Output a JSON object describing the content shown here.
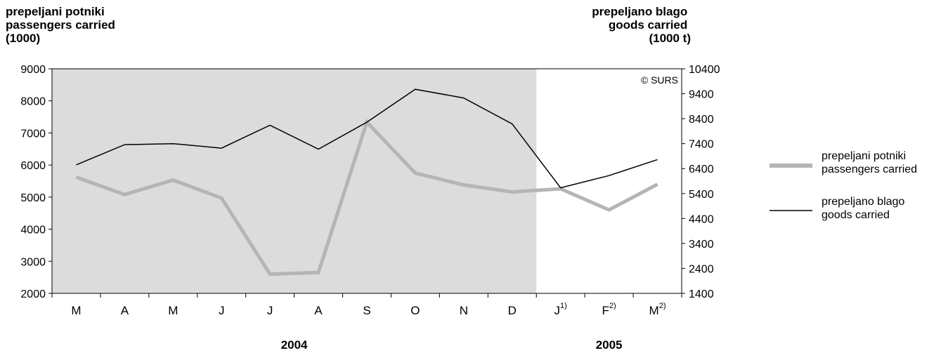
{
  "chart_data": {
    "type": "line",
    "categories": [
      "M",
      "A",
      "M",
      "J",
      "J",
      "A",
      "S",
      "O",
      "N",
      "D",
      "J",
      "F",
      "M"
    ],
    "category_superscripts": [
      "",
      "",
      "",
      "",
      "",
      "",
      "",
      "",
      "",
      "",
      "1)",
      "2)",
      "2)"
    ],
    "years": [
      {
        "label": "2004",
        "from_index": 0,
        "to_index": 9
      },
      {
        "label": "2005",
        "from_index": 10,
        "to_index": 12
      }
    ],
    "shaded_categories": [
      0,
      9
    ],
    "left_axis": {
      "title_lines": [
        "prepeljani potniki",
        "passengers carried",
        "(1000)"
      ],
      "min": 2000,
      "max": 9000,
      "ticks": [
        2000,
        3000,
        4000,
        5000,
        6000,
        7000,
        8000,
        9000
      ]
    },
    "right_axis": {
      "title_lines": [
        "prepeljano blago",
        "goods carried",
        "(1000 t)"
      ],
      "min": 1400,
      "max": 10400,
      "ticks": [
        1400,
        2400,
        3400,
        4400,
        5400,
        6400,
        7400,
        8400,
        9400,
        10400
      ]
    },
    "series": [
      {
        "name_lines": [
          "prepeljani potniki",
          "passengers carried"
        ],
        "axis": "left",
        "color": "#b5b5b5",
        "values": [
          5620,
          5080,
          5530,
          4970,
          2600,
          2650,
          7340,
          5750,
          5380,
          5160,
          5260,
          4600,
          5400
        ]
      },
      {
        "name_lines": [
          "prepeljano blago",
          "goods carried"
        ],
        "axis": "right",
        "color": "#000000",
        "values": [
          6550,
          7360,
          7400,
          7220,
          8140,
          7180,
          8260,
          9580,
          9230,
          8190,
          5630,
          6120,
          6760
        ]
      }
    ],
    "legend_position": "right",
    "grid": false,
    "annotation": "© SURS",
    "background_color": "#dcdcdc"
  }
}
